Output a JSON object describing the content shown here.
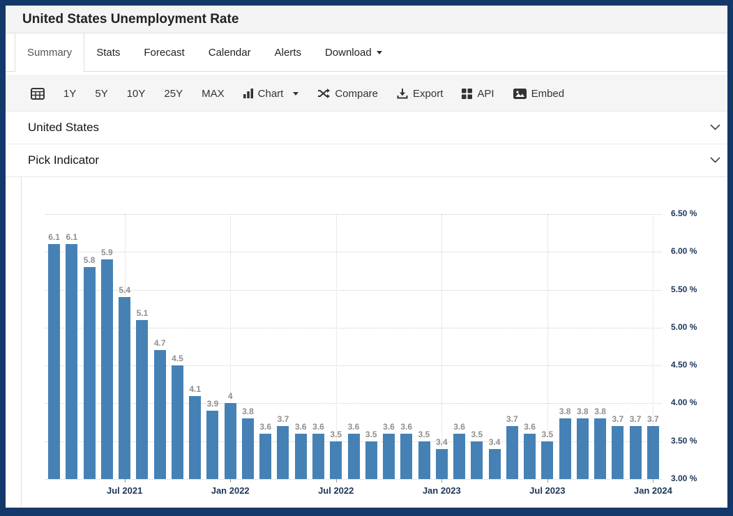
{
  "page": {
    "title": "United States Unemployment Rate"
  },
  "tabs": [
    {
      "label": "Summary",
      "active": true
    },
    {
      "label": "Stats",
      "active": false
    },
    {
      "label": "Forecast",
      "active": false
    },
    {
      "label": "Calendar",
      "active": false
    },
    {
      "label": "Alerts",
      "active": false
    },
    {
      "label": "Download",
      "active": false,
      "has_caret": true
    }
  ],
  "toolbar": {
    "date_icon": "calendar-grid-icon",
    "ranges": [
      "1Y",
      "5Y",
      "10Y",
      "25Y",
      "MAX"
    ],
    "chart": {
      "label": "Chart",
      "icon": "bar-chart-icon",
      "has_caret": true
    },
    "compare": {
      "label": "Compare",
      "icon": "shuffle-icon"
    },
    "export": {
      "label": "Export",
      "icon": "download-icon"
    },
    "api": {
      "label": "API",
      "icon": "grid-squares-icon"
    },
    "embed": {
      "label": "Embed",
      "icon": "picture-icon"
    }
  },
  "selectors": [
    {
      "label": "United States",
      "icon": "chevron-down-icon"
    },
    {
      "label": "Pick Indicator",
      "icon": "chevron-down-icon"
    }
  ],
  "colors": {
    "frame": "#15386a",
    "bar": "#4581b5",
    "axis_text": "#1c3557",
    "data_label": "#8f8f8f",
    "gridline": "#cccccc",
    "toolbar_bg": "#f5f5f5",
    "titlebar_bg": "#f4f4f4"
  },
  "chart_data": {
    "type": "bar",
    "title": "United States Unemployment Rate",
    "unit": "%",
    "values": [
      6.1,
      6.1,
      5.8,
      5.9,
      5.4,
      5.1,
      4.7,
      4.5,
      4.1,
      3.9,
      4,
      3.8,
      3.6,
      3.7,
      3.6,
      3.6,
      3.5,
      3.6,
      3.5,
      3.6,
      3.6,
      3.5,
      3.4,
      3.6,
      3.5,
      3.4,
      3.7,
      3.6,
      3.5,
      3.8,
      3.8,
      3.8,
      3.7,
      3.7,
      3.7
    ],
    "x_ticks": [
      {
        "index": 4,
        "label": "Jul 2021"
      },
      {
        "index": 10,
        "label": "Jan 2022"
      },
      {
        "index": 16,
        "label": "Jul 2022"
      },
      {
        "index": 22,
        "label": "Jan 2023"
      },
      {
        "index": 28,
        "label": "Jul 2023"
      },
      {
        "index": 34,
        "label": "Jan 2024"
      }
    ],
    "y_ticks": [
      {
        "value": 3.0,
        "label": "3.00 %"
      },
      {
        "value": 3.5,
        "label": "3.50 %"
      },
      {
        "value": 4.0,
        "label": "4.00 %"
      },
      {
        "value": 4.5,
        "label": "4.50 %"
      },
      {
        "value": 5.0,
        "label": "5.00 %"
      },
      {
        "value": 5.5,
        "label": "5.50 %"
      },
      {
        "value": 6.0,
        "label": "6.00 %"
      },
      {
        "value": 6.5,
        "label": "6.50 %"
      }
    ],
    "ylim": [
      3.0,
      6.5
    ],
    "grid": "dotted",
    "legend": false,
    "data_labels_shown": true
  }
}
